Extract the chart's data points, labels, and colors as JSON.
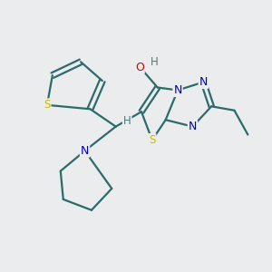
{
  "background_color": "#eaecee",
  "bond_color": "#2d6b6b",
  "atom_colors": {
    "S": "#ccbb00",
    "N": "#0000cc",
    "O": "#cc0000",
    "H": "#4a7a7a",
    "C": "#2d6b6b"
  },
  "figsize": [
    3.0,
    3.0
  ],
  "dpi": 100,
  "lw": 1.6
}
